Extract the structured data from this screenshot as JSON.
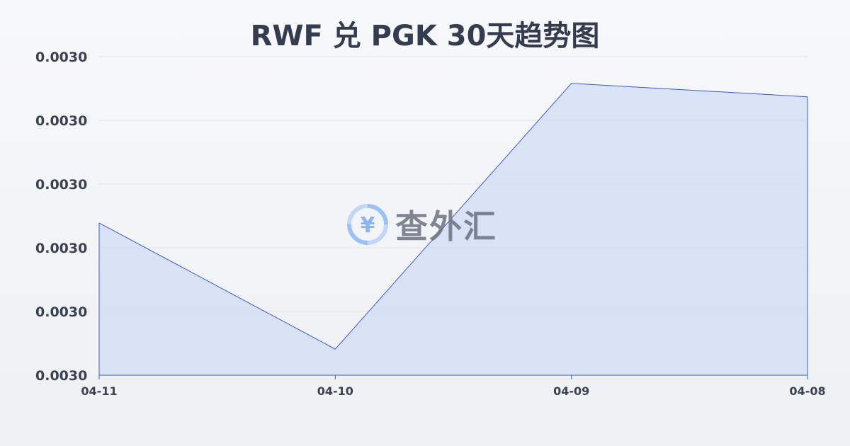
{
  "chart_data": {
    "type": "area",
    "title": "RWF 兑 PGK 30天趋势图",
    "categories": [
      "04-11",
      "04-10",
      "04-09",
      "04-08"
    ],
    "series": [
      {
        "values": [
          0.0030039,
          0.0029841,
          0.0030258,
          0.0030237
        ]
      }
    ],
    "ylim": [
      0.00298,
      0.00303
    ],
    "yticks": [
      0.00298,
      0.00299,
      0.003,
      0.00301,
      0.00302,
      0.00303
    ],
    "ytick_labels": [
      "0.0030",
      "0.0030",
      "0.0030",
      "0.0030",
      "0.0030",
      "0.0030"
    ],
    "grid": true,
    "colors": {
      "line": "#3a5bd0",
      "fill": "#c9d7f5",
      "title": "#333d4f"
    }
  },
  "watermark": {
    "text": "查外汇",
    "icon": "yen-exchange-icon",
    "color": "#5b9cf0"
  }
}
